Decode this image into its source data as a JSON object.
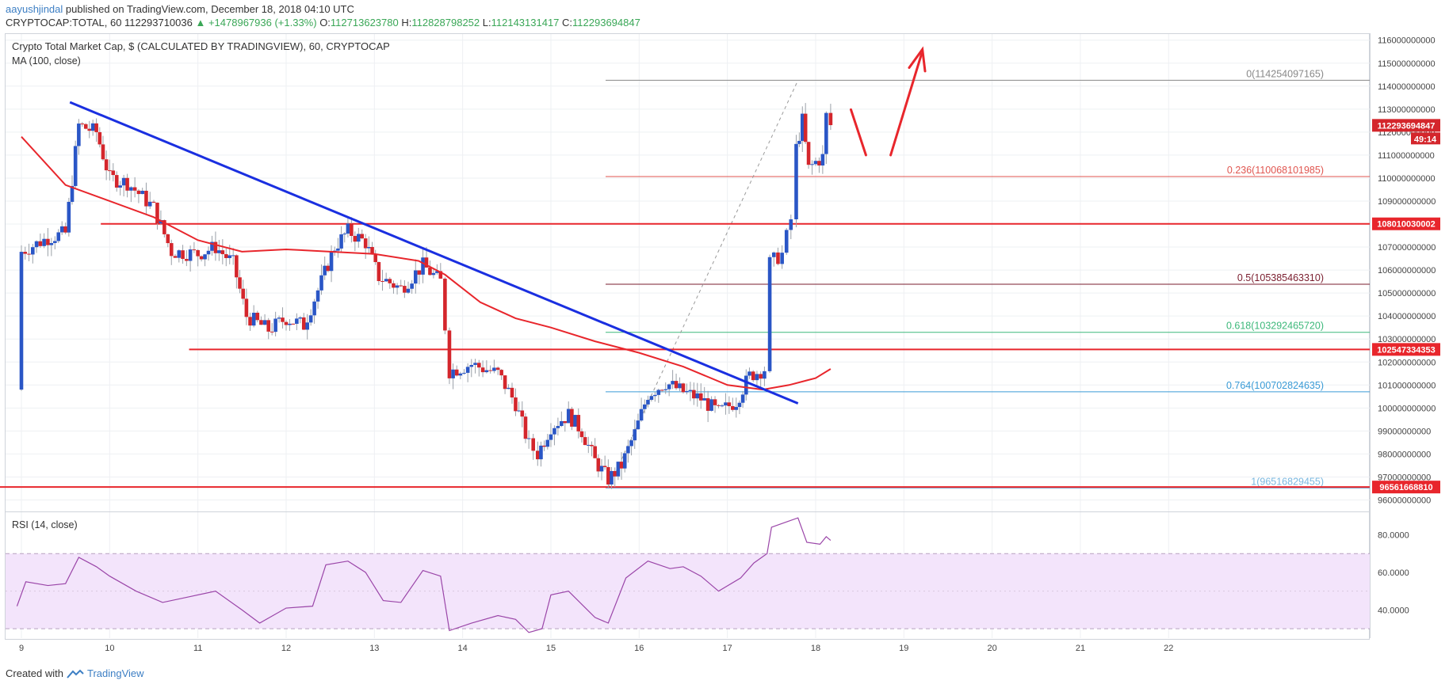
{
  "header": {
    "author": "aayushjindal",
    "published_text": "published on TradingView.com, December 18, 2018 04:10 UTC",
    "symbol": "CRYPTOCAP:TOTAL, 60",
    "last": "112293710036",
    "change": "▲ +1478967936 (+1.33%)",
    "open_label": "O:",
    "open": "112713623780",
    "high_label": "H:",
    "high": "112828798252",
    "low_label": "L:",
    "low": "112143131417",
    "close_label": "C:",
    "close": "112293694847"
  },
  "legend": {
    "title": "Crypto Total Market Cap, $ (CALCULATED BY TRADINGVIEW), 60, CRYPTOCAP",
    "ma": "MA (100, close)",
    "rsi": "RSI (14, close)"
  },
  "footer": {
    "created_with": "Created with",
    "brand": "TradingView"
  },
  "colors": {
    "up": "#3ba755",
    "down": "#e02a2a",
    "candle_up": "#2a56c6",
    "candle_down": "#d4262c",
    "trendline": "#1a2fe0",
    "ma": "#e8262c",
    "resistance": "#e8262c",
    "rsi": "#9a45a8",
    "rsi_band": "#f3e4fb",
    "fib_red": "#e0554f",
    "fib_green": "#3cb87a",
    "fib_blue": "#3a9bd6"
  },
  "chart_data": [
    {
      "type": "candlestick",
      "title": "Crypto Total Market Cap, $ (CALCULATED BY TRADINGVIEW), 60, CRYPTOCAP",
      "x_ticks": [
        "9",
        "10",
        "11",
        "12",
        "13",
        "14",
        "15",
        "16",
        "17",
        "18",
        "19",
        "20",
        "21",
        "22"
      ],
      "y_ticks": [
        "116000000000",
        "115000000000",
        "114000000000",
        "113000000000",
        "112000000000",
        "111000000000",
        "110000000000",
        "109000000000",
        "108000000000",
        "107000000000",
        "106000000000",
        "105000000000",
        "104000000000",
        "103000000000",
        "102000000000",
        "101000000000",
        "100000000000",
        "99000000000",
        "98000000000",
        "97000000000",
        "96000000000"
      ],
      "ylim": [
        95500000000,
        116300000000
      ],
      "price_path": [
        {
          "x": 8.95,
          "y": 100800000000
        },
        {
          "x": 9.0,
          "y": 106800000000
        },
        {
          "x": 9.3,
          "y": 107400000000
        },
        {
          "x": 9.5,
          "y": 107600000000
        },
        {
          "x": 9.65,
          "y": 112300000000
        },
        {
          "x": 9.85,
          "y": 112000000000
        },
        {
          "x": 10.0,
          "y": 110000000000
        },
        {
          "x": 10.2,
          "y": 109800000000
        },
        {
          "x": 10.5,
          "y": 108700000000
        },
        {
          "x": 10.7,
          "y": 106800000000
        },
        {
          "x": 11.0,
          "y": 106700000000
        },
        {
          "x": 11.2,
          "y": 107000000000
        },
        {
          "x": 11.4,
          "y": 106300000000
        },
        {
          "x": 11.55,
          "y": 104000000000
        },
        {
          "x": 11.8,
          "y": 103400000000
        },
        {
          "x": 12.0,
          "y": 103900000000
        },
        {
          "x": 12.2,
          "y": 103600000000
        },
        {
          "x": 12.4,
          "y": 105500000000
        },
        {
          "x": 12.55,
          "y": 107000000000
        },
        {
          "x": 12.7,
          "y": 107700000000
        },
        {
          "x": 12.9,
          "y": 107200000000
        },
        {
          "x": 13.05,
          "y": 105700000000
        },
        {
          "x": 13.3,
          "y": 105200000000
        },
        {
          "x": 13.55,
          "y": 106200000000
        },
        {
          "x": 13.75,
          "y": 105500000000
        },
        {
          "x": 13.85,
          "y": 101600000000
        },
        {
          "x": 14.1,
          "y": 101900000000
        },
        {
          "x": 14.4,
          "y": 101500000000
        },
        {
          "x": 14.6,
          "y": 100200000000
        },
        {
          "x": 14.75,
          "y": 98400000000
        },
        {
          "x": 14.85,
          "y": 98000000000
        },
        {
          "x": 15.0,
          "y": 99200000000
        },
        {
          "x": 15.2,
          "y": 99700000000
        },
        {
          "x": 15.35,
          "y": 99000000000
        },
        {
          "x": 15.5,
          "y": 97700000000
        },
        {
          "x": 15.65,
          "y": 96900000000
        },
        {
          "x": 15.8,
          "y": 97500000000
        },
        {
          "x": 15.95,
          "y": 98900000000
        },
        {
          "x": 16.1,
          "y": 100600000000
        },
        {
          "x": 16.3,
          "y": 101100000000
        },
        {
          "x": 16.5,
          "y": 100700000000
        },
        {
          "x": 16.7,
          "y": 100400000000
        },
        {
          "x": 16.9,
          "y": 99800000000
        },
        {
          "x": 17.1,
          "y": 100300000000
        },
        {
          "x": 17.25,
          "y": 101400000000
        },
        {
          "x": 17.42,
          "y": 101700000000
        },
        {
          "x": 17.48,
          "y": 106300000000
        },
        {
          "x": 17.62,
          "y": 106700000000
        },
        {
          "x": 17.72,
          "y": 108200000000
        },
        {
          "x": 17.78,
          "y": 111300000000
        },
        {
          "x": 17.85,
          "y": 112500000000
        },
        {
          "x": 17.92,
          "y": 110400000000
        },
        {
          "x": 18.0,
          "y": 110700000000
        },
        {
          "x": 18.08,
          "y": 110900000000
        },
        {
          "x": 18.12,
          "y": 112700000000
        },
        {
          "x": 18.17,
          "y": 112300000000
        }
      ],
      "ma100": [
        {
          "x": 9.0,
          "y": 111800000000
        },
        {
          "x": 9.5,
          "y": 109700000000
        },
        {
          "x": 10.0,
          "y": 109000000000
        },
        {
          "x": 10.5,
          "y": 108300000000
        },
        {
          "x": 11.0,
          "y": 107300000000
        },
        {
          "x": 11.5,
          "y": 106800000000
        },
        {
          "x": 12.0,
          "y": 106900000000
        },
        {
          "x": 12.5,
          "y": 106800000000
        },
        {
          "x": 13.0,
          "y": 106700000000
        },
        {
          "x": 13.5,
          "y": 106400000000
        },
        {
          "x": 13.8,
          "y": 105800000000
        },
        {
          "x": 14.2,
          "y": 104600000000
        },
        {
          "x": 14.6,
          "y": 103900000000
        },
        {
          "x": 15.0,
          "y": 103500000000
        },
        {
          "x": 15.5,
          "y": 102900000000
        },
        {
          "x": 16.0,
          "y": 102400000000
        },
        {
          "x": 16.5,
          "y": 101800000000
        },
        {
          "x": 17.0,
          "y": 101000000000
        },
        {
          "x": 17.4,
          "y": 100800000000
        },
        {
          "x": 17.7,
          "y": 101000000000
        },
        {
          "x": 18.0,
          "y": 101300000000
        },
        {
          "x": 18.17,
          "y": 101700000000
        }
      ],
      "trendline": [
        {
          "x": 9.55,
          "y": 113300000000
        },
        {
          "x": 17.8,
          "y": 100200000000
        }
      ],
      "horizontal_levels": [
        {
          "value": 108010030002,
          "x_start": 9.9,
          "label": "108010030002"
        },
        {
          "value": 102547334353,
          "x_start": 10.9,
          "label": "102547334353"
        },
        {
          "value": 96561668810,
          "x_start": 8.7,
          "label": "96561668810"
        }
      ],
      "current_price_tag": "112293694847",
      "countdown": "49:14",
      "fibonacci": [
        {
          "ratio": "0",
          "value": 114254097165,
          "label": "0(114254097165)"
        },
        {
          "ratio": "0.236",
          "value": 110068101985,
          "label": "0.236(110068101985)"
        },
        {
          "ratio": "0.5",
          "value": 105385463310,
          "label": "0.5(105385463310)"
        },
        {
          "ratio": "0.618",
          "value": 103292465720,
          "label": "0.618(103292465720)"
        },
        {
          "ratio": "0.764",
          "value": 100702824635,
          "label": "0.764(100702824635)"
        },
        {
          "ratio": "1",
          "value": 96516829455,
          "label": "1(96516829455)"
        }
      ],
      "fib_x_start": 15.62
    },
    {
      "type": "line",
      "title": "RSI (14, close)",
      "y_ticks": [
        "80.0000",
        "60.0000",
        "40.0000"
      ],
      "ylim": [
        25,
        92
      ],
      "band": [
        30,
        70
      ],
      "values": [
        {
          "x": 8.95,
          "y": 42
        },
        {
          "x": 9.05,
          "y": 55
        },
        {
          "x": 9.3,
          "y": 53
        },
        {
          "x": 9.5,
          "y": 54
        },
        {
          "x": 9.65,
          "y": 68
        },
        {
          "x": 9.85,
          "y": 63
        },
        {
          "x": 10.0,
          "y": 58
        },
        {
          "x": 10.3,
          "y": 50
        },
        {
          "x": 10.6,
          "y": 44
        },
        {
          "x": 10.9,
          "y": 47
        },
        {
          "x": 11.2,
          "y": 50
        },
        {
          "x": 11.5,
          "y": 40
        },
        {
          "x": 11.7,
          "y": 33
        },
        {
          "x": 12.0,
          "y": 41
        },
        {
          "x": 12.3,
          "y": 42
        },
        {
          "x": 12.45,
          "y": 64
        },
        {
          "x": 12.7,
          "y": 66
        },
        {
          "x": 12.9,
          "y": 60
        },
        {
          "x": 13.1,
          "y": 45
        },
        {
          "x": 13.3,
          "y": 44
        },
        {
          "x": 13.55,
          "y": 61
        },
        {
          "x": 13.75,
          "y": 58
        },
        {
          "x": 13.85,
          "y": 29
        },
        {
          "x": 14.1,
          "y": 33
        },
        {
          "x": 14.4,
          "y": 37
        },
        {
          "x": 14.6,
          "y": 35
        },
        {
          "x": 14.75,
          "y": 28
        },
        {
          "x": 14.9,
          "y": 30
        },
        {
          "x": 15.0,
          "y": 48
        },
        {
          "x": 15.2,
          "y": 50
        },
        {
          "x": 15.35,
          "y": 43
        },
        {
          "x": 15.5,
          "y": 36
        },
        {
          "x": 15.65,
          "y": 33
        },
        {
          "x": 15.85,
          "y": 57
        },
        {
          "x": 16.1,
          "y": 66
        },
        {
          "x": 16.35,
          "y": 62
        },
        {
          "x": 16.5,
          "y": 63
        },
        {
          "x": 16.7,
          "y": 58
        },
        {
          "x": 16.9,
          "y": 50
        },
        {
          "x": 17.15,
          "y": 57
        },
        {
          "x": 17.3,
          "y": 65
        },
        {
          "x": 17.45,
          "y": 70
        },
        {
          "x": 17.5,
          "y": 84
        },
        {
          "x": 17.68,
          "y": 87
        },
        {
          "x": 17.8,
          "y": 89
        },
        {
          "x": 17.9,
          "y": 76
        },
        {
          "x": 18.05,
          "y": 75
        },
        {
          "x": 18.12,
          "y": 79
        },
        {
          "x": 18.17,
          "y": 77
        }
      ]
    }
  ]
}
